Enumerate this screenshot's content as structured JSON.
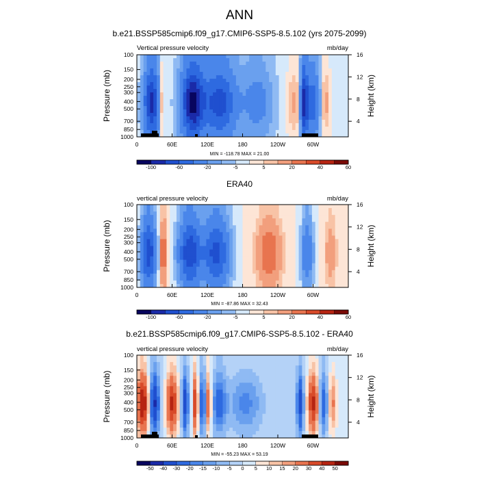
{
  "figure": {
    "title": "ANN"
  },
  "chart_data": [
    {
      "type": "heatmap",
      "title": "b.e21.BSSP585cmip6.f09_g17.CMIP6-SSP5-8.5.102 (yrs 2075-2099)",
      "left_label": "Vertical pressure velocity",
      "right_label": "mb/day",
      "ylabel": "Pressure (mb)",
      "ylabel_right": "Height (km)",
      "x_ticks": [
        "0",
        "60E",
        "120E",
        "180",
        "120W",
        "60W"
      ],
      "y_ticks": [
        "100",
        "150",
        "200",
        "250",
        "300",
        "400",
        "500",
        "700",
        "850",
        "1000"
      ],
      "height_ticks": [
        "16",
        "12",
        "8",
        "4"
      ],
      "stats": "MIN = -118.78  MAX = 21.00",
      "colorbar_labels": [
        "-100",
        "-60",
        "-20",
        "-5",
        "5",
        "20",
        "40",
        "60"
      ],
      "colorbar_levels": [
        -120,
        -100,
        -80,
        -60,
        -40,
        -20,
        -10,
        -5,
        0,
        5,
        10,
        20,
        30,
        40,
        50,
        60
      ],
      "min": -118.78,
      "max": 21.0
    },
    {
      "type": "heatmap",
      "title": "ERA40",
      "left_label": "vertical pressure velocity",
      "right_label": "mb/day",
      "ylabel": "Pressure (mb)",
      "ylabel_right": "Height (km)",
      "x_ticks": [
        "0",
        "60E",
        "120E",
        "180",
        "120W",
        "60W"
      ],
      "y_ticks": [
        "100",
        "150",
        "200",
        "250",
        "300",
        "400",
        "500",
        "700",
        "850",
        "1000"
      ],
      "height_ticks": [
        "16",
        "12",
        "8",
        "4"
      ],
      "stats": "MIN = -87.86  MAX = 32.43",
      "colorbar_labels": [
        "-100",
        "-60",
        "-20",
        "-5",
        "5",
        "20",
        "40",
        "60"
      ],
      "colorbar_levels": [
        -120,
        -100,
        -80,
        -60,
        -40,
        -20,
        -10,
        -5,
        0,
        5,
        10,
        20,
        30,
        40,
        50,
        60
      ],
      "min": -87.86,
      "max": 32.43
    },
    {
      "type": "heatmap",
      "title": "b.e21.BSSP585cmip6.f09_g17.CMIP6-SSP5-8.5.102 - ERA40",
      "left_label": "vertical pressure velocity",
      "right_label": "mb/day",
      "ylabel": "Pressure (mb)",
      "ylabel_right": "Height (km)",
      "x_ticks": [
        "0",
        "60E",
        "120E",
        "180",
        "120W",
        "60W"
      ],
      "y_ticks": [
        "100",
        "150",
        "200",
        "250",
        "300",
        "400",
        "500",
        "700",
        "850",
        "1000"
      ],
      "height_ticks": [
        "16",
        "12",
        "8",
        "4"
      ],
      "stats": "MIN = -55.23  MAX = 53.19",
      "colorbar_labels": [
        "-50",
        "-40",
        "-30",
        "-20",
        "-15",
        "-10",
        "-5",
        "0",
        "5",
        "10",
        "15",
        "20",
        "30",
        "40",
        "50"
      ],
      "colorbar_levels": [
        -60,
        -50,
        -40,
        -30,
        -20,
        -15,
        -10,
        -5,
        0,
        5,
        10,
        15,
        20,
        30,
        40,
        50,
        60
      ],
      "min": -55.23,
      "max": 53.19
    }
  ],
  "colors": {
    "palette": [
      "#08055e",
      "#1a2aa8",
      "#1f4fcf",
      "#2e6ae0",
      "#4a86ea",
      "#6aa0ee",
      "#8fbaf3",
      "#b4d2f7",
      "#d6e9fb",
      "#fde5d6",
      "#f8c3a6",
      "#f29f7d",
      "#e8744f",
      "#d84a29",
      "#b62412",
      "#7a0a06"
    ],
    "terrain": "#000000"
  }
}
